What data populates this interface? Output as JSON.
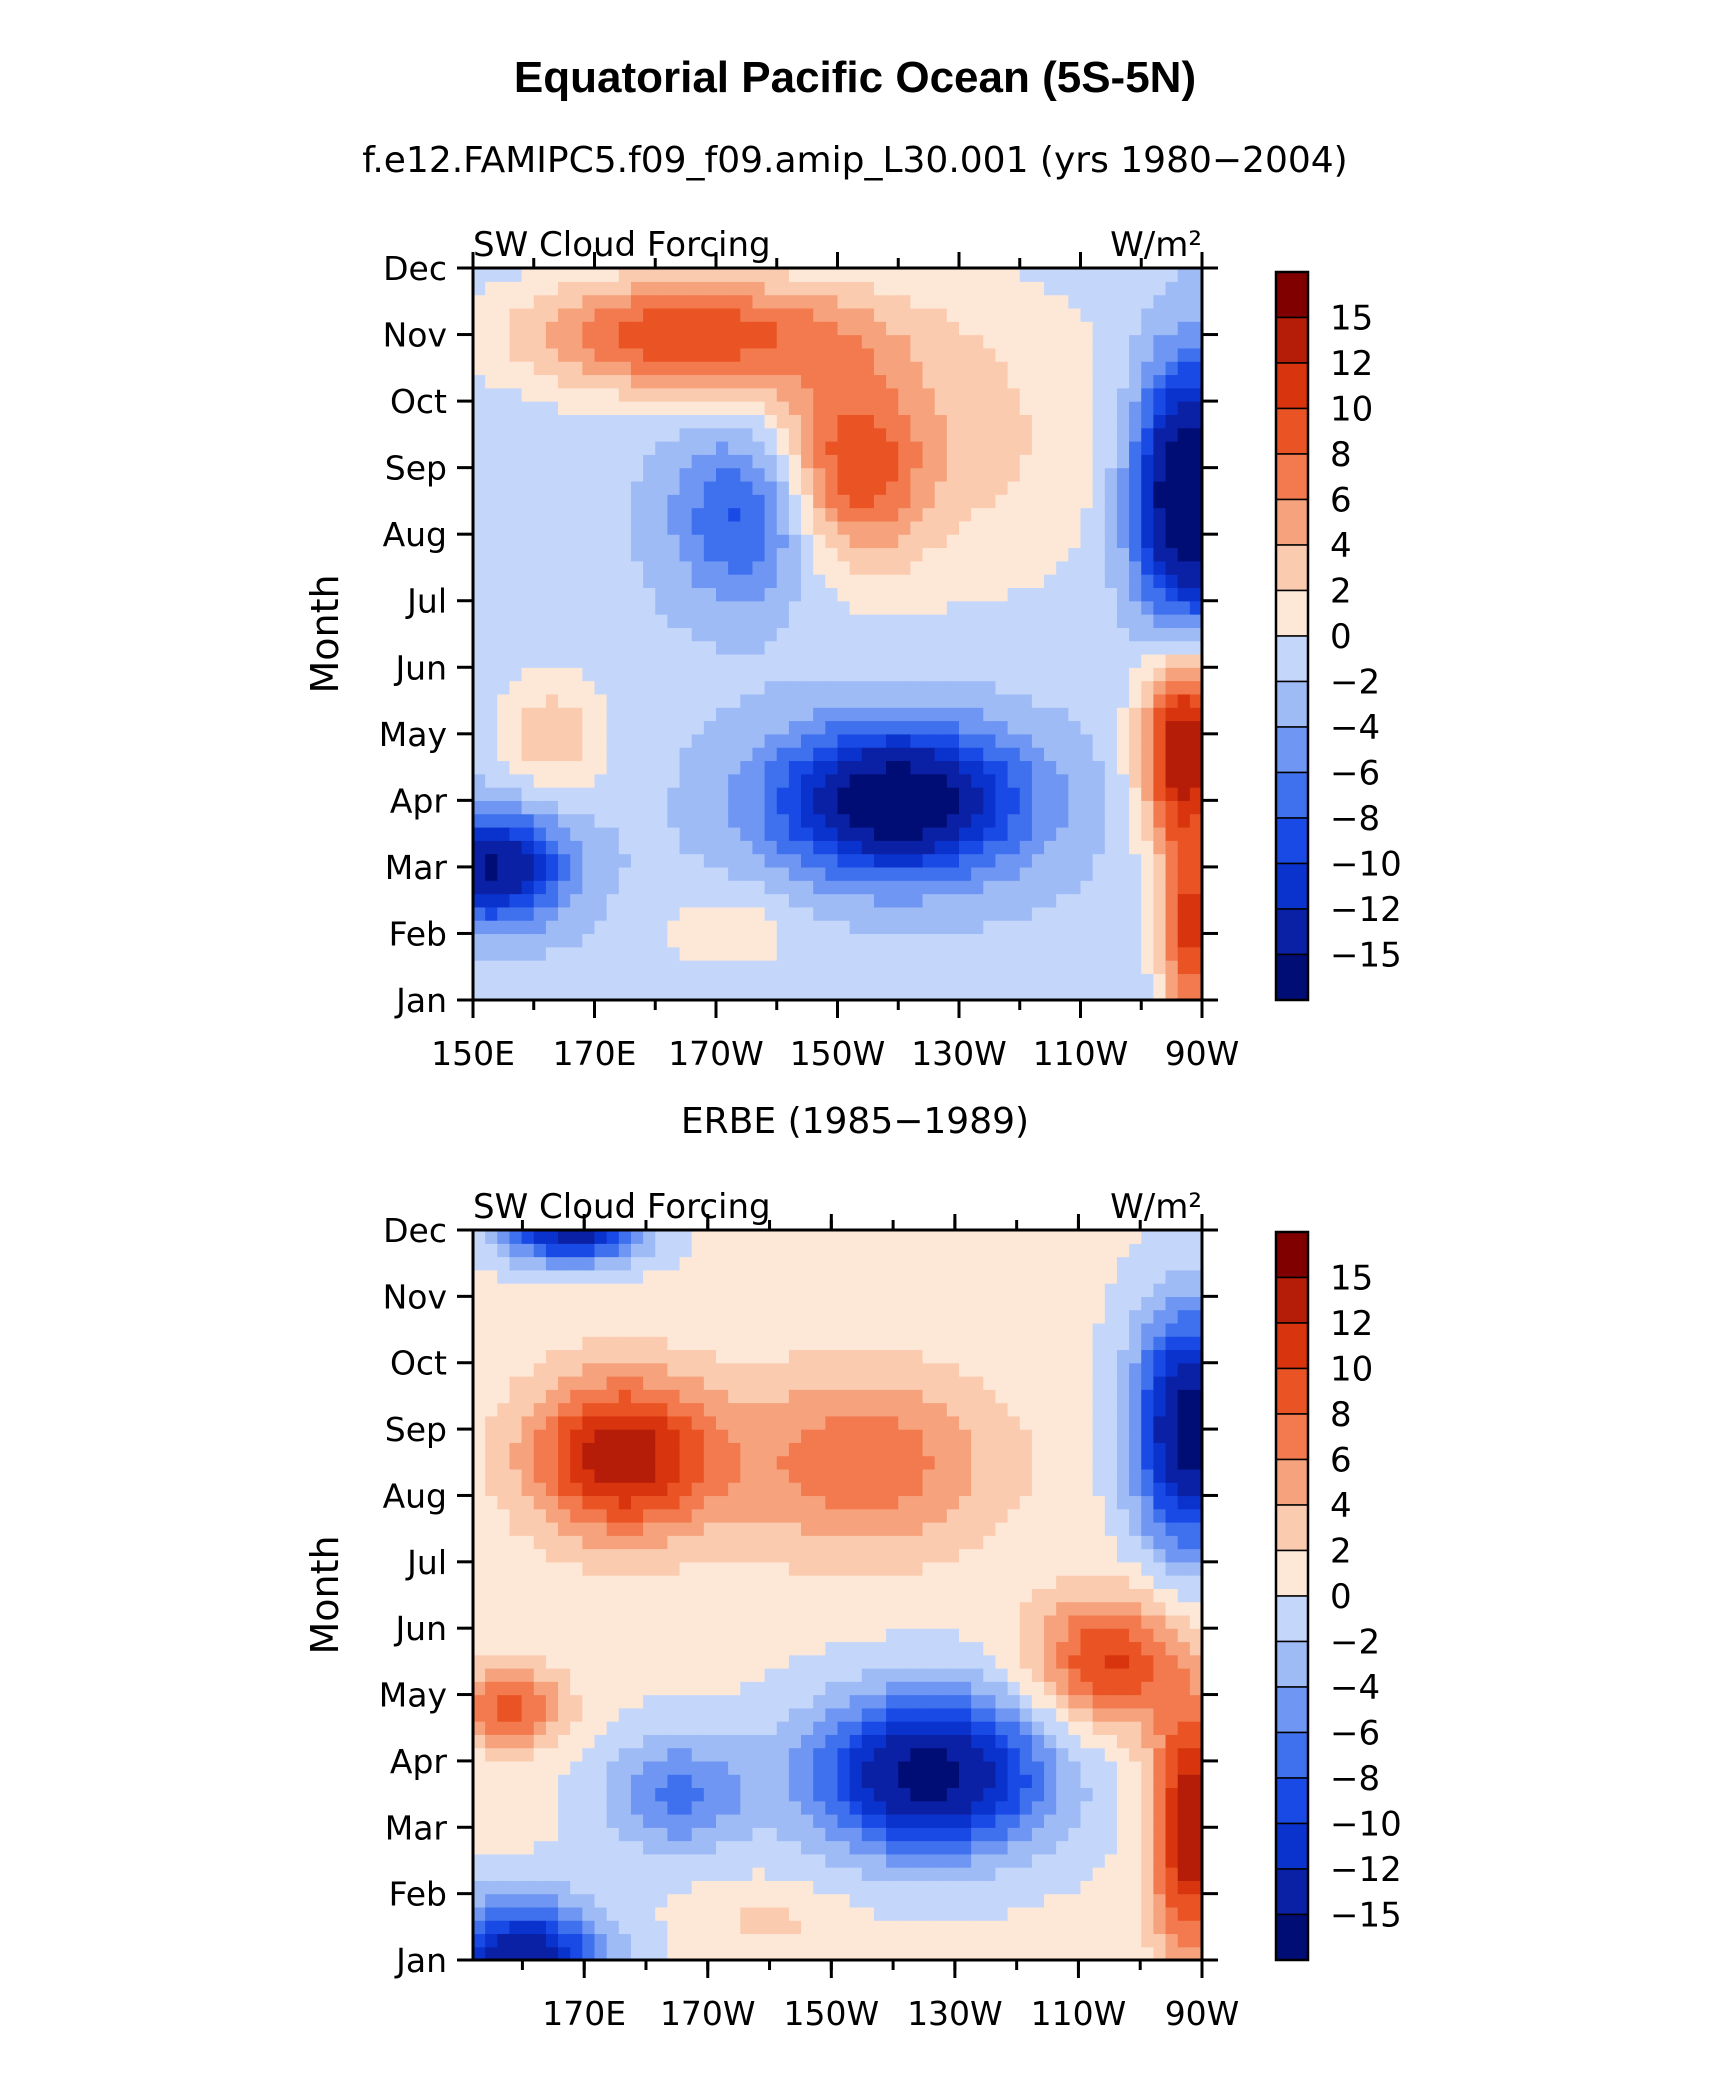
{
  "figure": {
    "title": "Equatorial Pacific Ocean (5S-5N)"
  },
  "chart_data": [
    {
      "type": "heatmap",
      "panel_title": "f.e12.FAMIPC5.f09_f09.amip_L30.001 (yrs 1980−2004)",
      "title": "SW Cloud Forcing",
      "units": "W/m²",
      "ylabel": "Month",
      "y_categories": [
        "Jan",
        "Feb",
        "Mar",
        "Apr",
        "May",
        "Jun",
        "Jul",
        "Aug",
        "Sep",
        "Oct",
        "Nov",
        "Dec"
      ],
      "x_tick_labels": [
        "150E",
        "170E",
        "170W",
        "150W",
        "130W",
        "110W",
        "90W"
      ],
      "x_tick_values": [
        150,
        170,
        190,
        210,
        230,
        250,
        270
      ],
      "xlim": [
        150,
        270
      ],
      "ylim": [
        1,
        12
      ],
      "colorbar_levels": [
        -15,
        -12,
        -10,
        -8,
        -6,
        -4,
        -2,
        0,
        2,
        4,
        6,
        8,
        10,
        12,
        15
      ],
      "colorbar_labels": [
        "15",
        "12",
        "10",
        "8",
        "6",
        "4",
        "2",
        "0",
        "−2",
        "−4",
        "−6",
        "−8",
        "−10",
        "−12",
        "−15"
      ],
      "features": [
        {
          "lon": 220,
          "month": 4.0,
          "value": -16,
          "note": "strong negative core near 140W-150W"
        },
        {
          "lon": 267,
          "month": 8.5,
          "value": -17,
          "note": "strong negative in east Aug-Sep"
        },
        {
          "lon": 266,
          "month": 4.8,
          "value": 16,
          "note": "strong positive east Apr-May"
        },
        {
          "lon": 175,
          "month": 11.0,
          "value": 12,
          "note": "positive band Oct-Nov west"
        },
        {
          "lon": 152,
          "month": 3.0,
          "value": -15,
          "note": "negative west Mar"
        }
      ]
    },
    {
      "type": "heatmap",
      "panel_title": "ERBE (1985−1989)",
      "title": "SW Cloud Forcing",
      "units": "W/m²",
      "ylabel": "Month",
      "y_categories": [
        "Jan",
        "Feb",
        "Mar",
        "Apr",
        "May",
        "Jun",
        "Jul",
        "Aug",
        "Sep",
        "Oct",
        "Nov",
        "Dec"
      ],
      "x_tick_labels": [
        "170E",
        "170W",
        "150W",
        "130W",
        "110W",
        "90W"
      ],
      "x_tick_values": [
        170,
        190,
        210,
        230,
        250,
        270
      ],
      "xlim": [
        152,
        270
      ],
      "ylim": [
        1,
        12
      ],
      "colorbar_levels": [
        -15,
        -12,
        -10,
        -8,
        -6,
        -4,
        -2,
        0,
        2,
        4,
        6,
        8,
        10,
        12,
        15
      ],
      "colorbar_labels": [
        "15",
        "12",
        "10",
        "8",
        "6",
        "4",
        "2",
        "0",
        "−2",
        "−4",
        "−6",
        "−8",
        "−10",
        "−12",
        "−15"
      ],
      "features": [
        {
          "lon": 225,
          "month": 3.8,
          "value": -16,
          "note": "strong negative core near 130W-140W"
        },
        {
          "lon": 267,
          "month": 8.8,
          "value": -16,
          "note": "strong negative in east Sep"
        },
        {
          "lon": 175,
          "month": 8.5,
          "value": 13,
          "note": "positive core Aug-Sep west"
        },
        {
          "lon": 268,
          "month": 3.0,
          "value": 14,
          "note": "positive east Mar"
        },
        {
          "lon": 158,
          "month": 1.2,
          "value": -14,
          "note": "negative west Jan"
        }
      ]
    }
  ],
  "colors": {
    "scale": [
      "#000d75",
      "#0a21a6",
      "#0a32cc",
      "#1a4ae6",
      "#3f71ee",
      "#6e96f2",
      "#9ebbf6",
      "#c4d7fa",
      "#e3edfc",
      "#fde8d8",
      "#fbcbb0",
      "#f6a27d",
      "#f27a4e",
      "#ea5424",
      "#d8340e",
      "#b51d08",
      "#800000"
    ]
  }
}
